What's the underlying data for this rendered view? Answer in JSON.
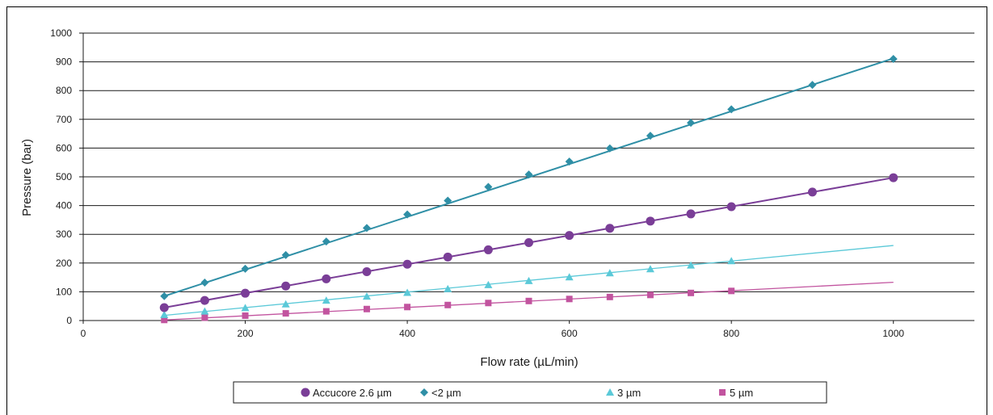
{
  "chart_data": {
    "type": "scatter",
    "title": "",
    "xlabel": "Flow rate (µL/min)",
    "ylabel": "Pressure (bar)",
    "xlim": [
      0,
      1100
    ],
    "ylim": [
      0,
      1000
    ],
    "x_ticks": [
      "0",
      "200",
      "400",
      "600",
      "800",
      "1000"
    ],
    "y_ticks": [
      "0",
      "100",
      "200",
      "300",
      "400",
      "500",
      "600",
      "700",
      "800",
      "900",
      "1000"
    ],
    "grid": "horizontal",
    "legend_position": "bottom",
    "series": [
      {
        "name": "Accucore 2.6 µm",
        "marker": "circle",
        "color": "#7a3e97",
        "x": [
          100,
          150,
          200,
          250,
          300,
          350,
          400,
          450,
          500,
          550,
          600,
          650,
          700,
          750,
          800,
          900,
          1000
        ],
        "y": [
          45,
          70,
          95,
          120,
          145,
          170,
          196,
          221,
          246,
          271,
          296,
          321,
          346,
          371,
          396,
          447,
          497
        ],
        "trendline": [
          [
            100,
            45
          ],
          [
            1000,
            497
          ]
        ]
      },
      {
        "name": "<2 µm",
        "marker": "diamond",
        "color": "#2f8fa6",
        "x": [
          100,
          150,
          200,
          250,
          300,
          350,
          400,
          450,
          500,
          550,
          600,
          650,
          700,
          750,
          800,
          900,
          1000
        ],
        "y": [
          85,
          132,
          180,
          228,
          275,
          322,
          369,
          417,
          465,
          508,
          553,
          599,
          643,
          688,
          735,
          820,
          910
        ],
        "trendline": [
          [
            100,
            85
          ],
          [
            1000,
            912
          ]
        ]
      },
      {
        "name": "3 µm",
        "marker": "triangle",
        "color": "#5bc9d8",
        "x": [
          100,
          150,
          200,
          250,
          300,
          350,
          400,
          450,
          500,
          550,
          600,
          650,
          700,
          750,
          800
        ],
        "y": [
          20,
          32,
          44,
          57,
          70,
          84,
          97,
          110,
          124,
          138,
          151,
          165,
          179,
          192,
          207
        ],
        "trendline": [
          [
            100,
            18
          ],
          [
            1000,
            261
          ]
        ]
      },
      {
        "name": "5 µm",
        "marker": "square",
        "color": "#c2549f",
        "x": [
          100,
          150,
          200,
          250,
          300,
          350,
          400,
          450,
          500,
          550,
          600,
          650,
          700,
          750,
          800
        ],
        "y": [
          2,
          10,
          17,
          25,
          32,
          40,
          47,
          54,
          61,
          68,
          75,
          82,
          89,
          96,
          103
        ],
        "trendline": [
          [
            100,
            2
          ],
          [
            1000,
            133
          ]
        ]
      }
    ]
  }
}
